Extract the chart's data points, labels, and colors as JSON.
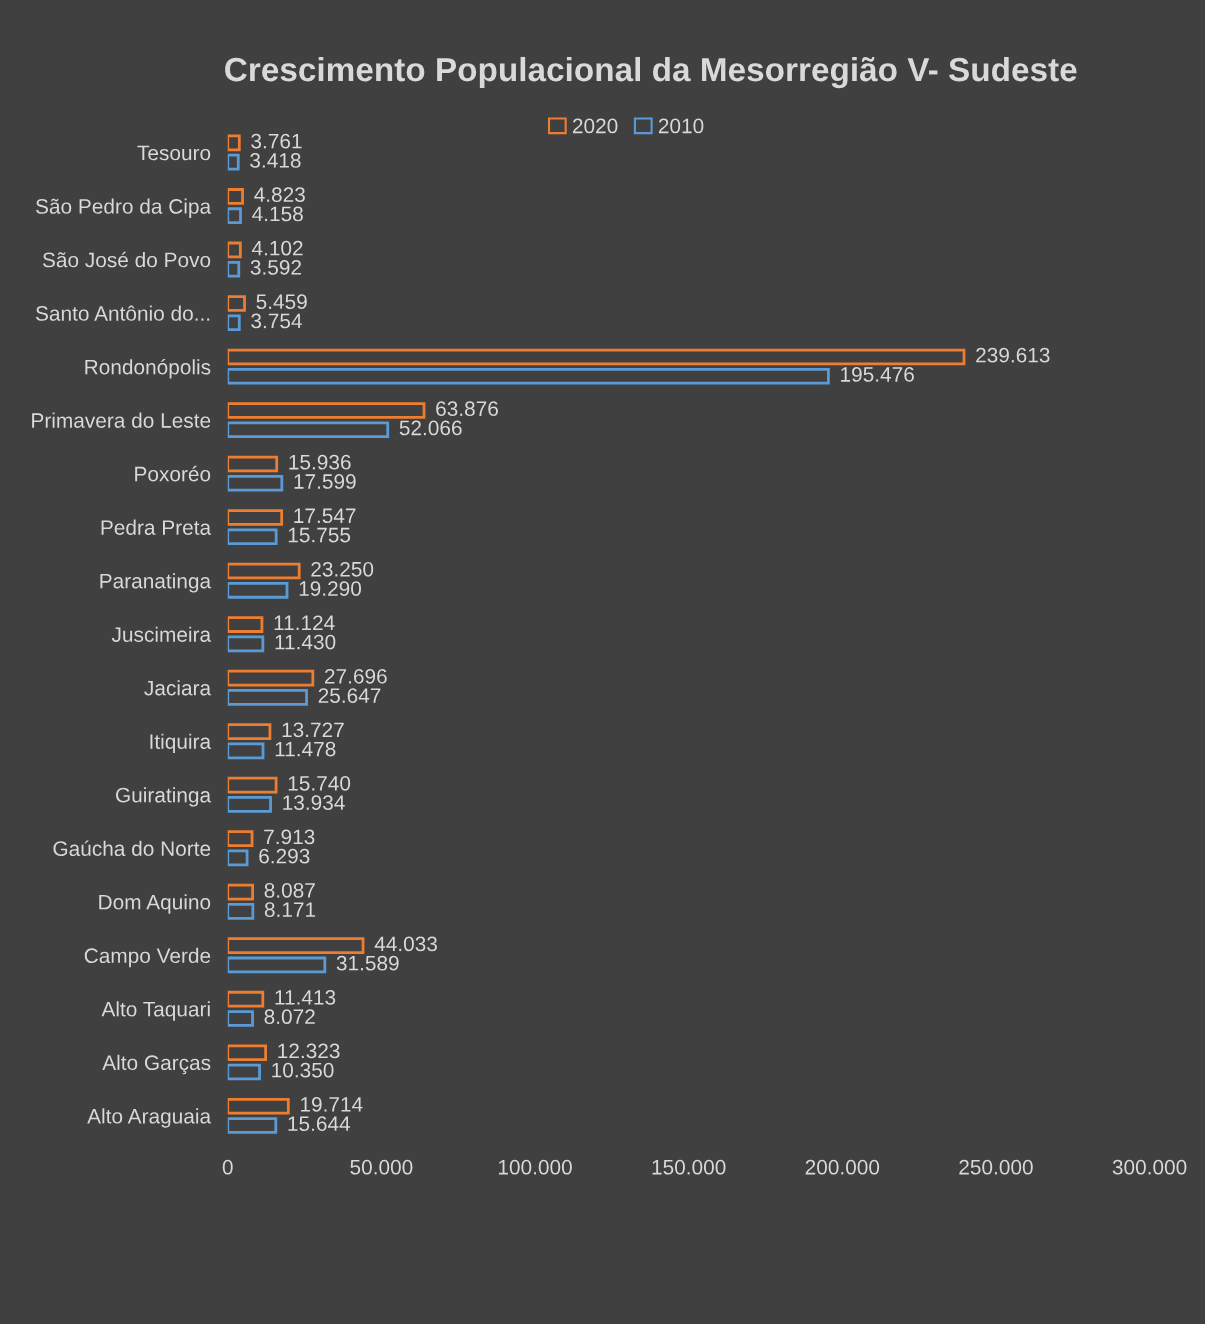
{
  "chart_data": {
    "type": "bar",
    "orientation": "horizontal",
    "title": "Crescimento Populacional da Mesorregião V- Sudeste",
    "categories": [
      "Tesouro",
      "São Pedro da Cipa",
      "São José do Povo",
      "Santo Antônio do...",
      "Rondonópolis",
      "Primavera do Leste",
      "Poxoréo",
      "Pedra Preta",
      "Paranatinga",
      "Juscimeira",
      "Jaciara",
      "Itiquira",
      "Guiratinga",
      "Gaúcha do Norte",
      "Dom Aquino",
      "Campo Verde",
      "Alto Taquari",
      "Alto Garças",
      "Alto Araguaia"
    ],
    "series": [
      {
        "name": "2020",
        "color": "#ed7d31",
        "values": [
          3761,
          4823,
          4102,
          5459,
          239613,
          63876,
          15936,
          17547,
          23250,
          11124,
          27696,
          13727,
          15740,
          7913,
          8087,
          44033,
          11413,
          12323,
          19714
        ],
        "value_labels": [
          "3.761",
          "4.823",
          "4.102",
          "5.459",
          "239.613",
          "63.876",
          "15.936",
          "17.547",
          "23.250",
          "11.124",
          "27.696",
          "13.727",
          "15.740",
          "7.913",
          "8.087",
          "44.033",
          "11.413",
          "12.323",
          "19.714"
        ]
      },
      {
        "name": "2010",
        "color": "#5b9bd5",
        "values": [
          3418,
          4158,
          3592,
          3754,
          195476,
          52066,
          17599,
          15755,
          19290,
          11430,
          25647,
          11478,
          13934,
          6293,
          8171,
          31589,
          8072,
          10350,
          15644
        ],
        "value_labels": [
          "3.418",
          "4.158",
          "3.592",
          "3.754",
          "195.476",
          "52.066",
          "17.599",
          "15.755",
          "19.290",
          "11.430",
          "25.647",
          "11.478",
          "13.934",
          "6.293",
          "8.171",
          "31.589",
          "8.072",
          "10.350",
          "15.644"
        ]
      }
    ],
    "xlim": [
      0,
      300000
    ],
    "xticks": [
      0,
      {
        "value": 50000,
        "label": "50.000"
      },
      {
        "value": 100000,
        "label": "100.000"
      },
      {
        "value": 150000,
        "label": "150.000"
      },
      {
        "value": 200000,
        "label": "200.000"
      },
      {
        "value": 250000,
        "label": "250.000"
      },
      {
        "value": 300000,
        "label": "300.000"
      }
    ],
    "grid": false,
    "legend": "top"
  }
}
